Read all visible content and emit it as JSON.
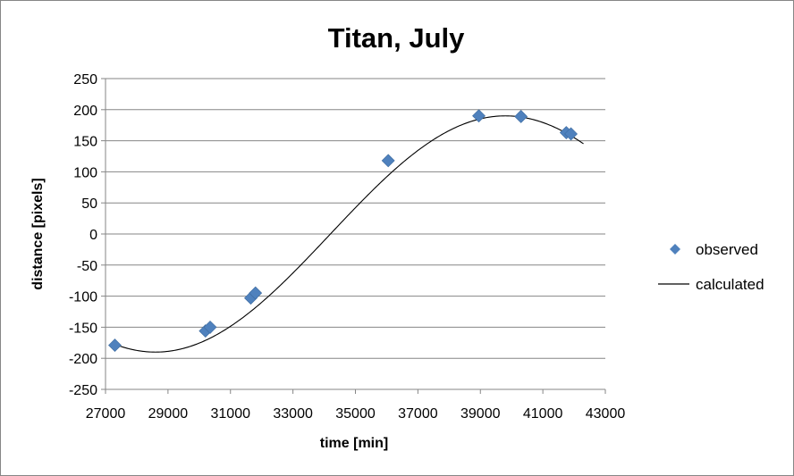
{
  "chart_data": {
    "type": "scatter",
    "title": "Titan, July",
    "xlabel": "time [min]",
    "ylabel": "distance [pixels]",
    "xlim": [
      27000,
      43000
    ],
    "ylim": [
      -250,
      250
    ],
    "x_ticks": [
      27000,
      29000,
      31000,
      33000,
      35000,
      37000,
      39000,
      41000,
      43000
    ],
    "y_ticks": [
      -250,
      -200,
      -150,
      -100,
      -50,
      0,
      50,
      100,
      150,
      200,
      250
    ],
    "grid": "horizontal",
    "legend_position": "right",
    "series": [
      {
        "name": "observed",
        "kind": "markers",
        "marker": "diamond",
        "color": "#4F81BD",
        "points": [
          [
            27300,
            -179
          ],
          [
            30200,
            -156
          ],
          [
            30350,
            -150
          ],
          [
            31650,
            -103
          ],
          [
            31800,
            -95
          ],
          [
            36050,
            118
          ],
          [
            38950,
            190
          ],
          [
            40300,
            189
          ],
          [
            41750,
            163
          ],
          [
            41900,
            161
          ]
        ]
      },
      {
        "name": "calculated",
        "kind": "line",
        "color": "#000000",
        "model": {
          "amplitude": 190,
          "center": 34200,
          "period": 22400,
          "phase_offset_deg": 0
        },
        "range": [
          27200,
          42300
        ]
      }
    ]
  }
}
